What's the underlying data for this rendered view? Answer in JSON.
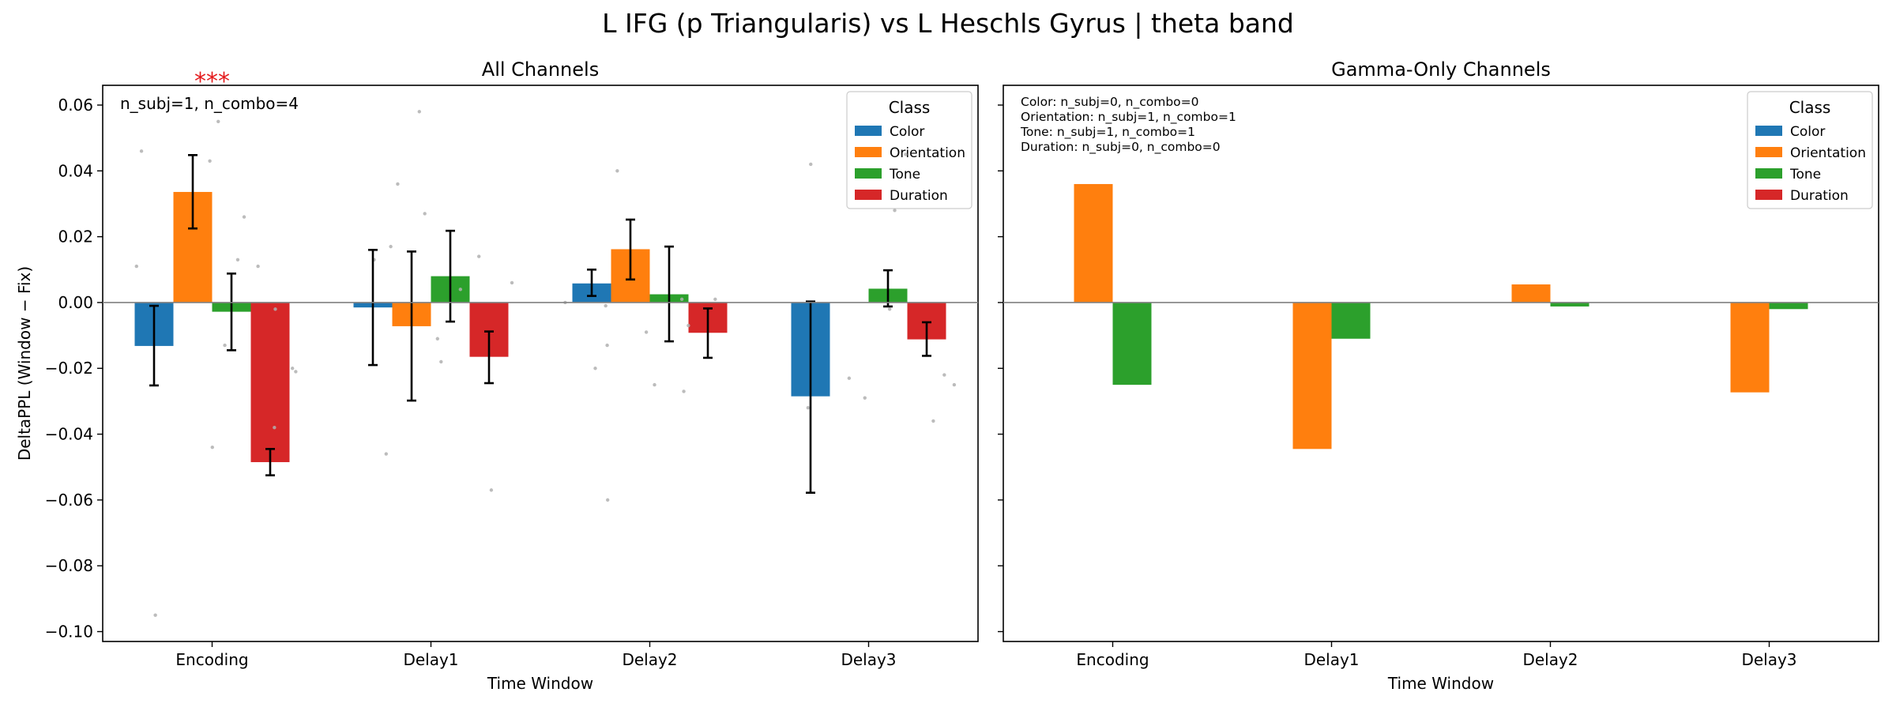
{
  "figure": {
    "title": "L IFG (p Triangularis) vs L Heschls Gyrus  |  theta band"
  },
  "colors": {
    "Color": "#1f77b4",
    "Orientation": "#ff7f0e",
    "Tone": "#2ca02c",
    "Duration": "#d62728",
    "significance": "#e41a1c",
    "points": "#b0b0b0"
  },
  "chart_data": [
    {
      "type": "bar",
      "title": "All Channels",
      "xlabel": "Time Window",
      "ylabel": "DeltaPPL (Window − Fix)",
      "categories": [
        "Encoding",
        "Delay1",
        "Delay2",
        "Delay3"
      ],
      "ylim": [
        -0.103,
        0.066
      ],
      "yticks": [
        -0.1,
        -0.08,
        -0.06,
        -0.04,
        -0.02,
        0.0,
        0.02,
        0.04,
        0.06
      ],
      "ytick_labels": [
        "−0.10",
        "−0.08",
        "−0.06",
        "−0.04",
        "−0.02",
        "0.00",
        "0.02",
        "0.04",
        "0.06"
      ],
      "legend": {
        "title": "Class",
        "position": "top-right"
      },
      "annotation": "n_subj=1, n_combo=4",
      "significance": [
        {
          "category": "Encoding",
          "label": "***"
        }
      ],
      "series": [
        {
          "name": "Color",
          "values": [
            -0.0132,
            -0.0015,
            0.0058,
            -0.0285
          ],
          "err_low": [
            -0.0252,
            -0.019,
            0.002,
            -0.0578
          ],
          "err_high": [
            -0.001,
            0.016,
            0.01,
            0.0003
          ],
          "points": [
            0.011,
            -0.046,
            -0.02,
            -0.032,
            0.046,
            0.017,
            -0.001,
            0.042,
            -0.095,
            0.013,
            0.0
          ]
        },
        {
          "name": "Orientation",
          "values": [
            0.0336,
            -0.0072,
            0.0162,
            null
          ],
          "err_low": [
            0.0225,
            -0.0298,
            0.007,
            null
          ],
          "err_high": [
            0.0448,
            0.0155,
            0.0252,
            null
          ],
          "points": [
            0.055,
            0.036,
            0.04,
            -0.029,
            -0.044,
            0.058,
            -0.013,
            -0.023,
            0.043,
            0.027,
            -0.06
          ]
        },
        {
          "name": "Tone",
          "values": [
            -0.0028,
            0.008,
            0.0025,
            0.0042
          ],
          "err_low": [
            -0.0145,
            -0.0058,
            -0.0118,
            -0.0012
          ],
          "err_high": [
            0.0088,
            0.0218,
            0.017,
            0.0098
          ],
          "points": [
            0.026,
            -0.018,
            -0.025,
            0.045,
            0.011,
            -0.011,
            -0.009,
            -0.002,
            -0.013,
            0.004,
            -0.027,
            0.028,
            0.013
          ]
        },
        {
          "name": "Duration",
          "values": [
            -0.0485,
            -0.0165,
            -0.0092,
            -0.0112
          ],
          "err_low": [
            -0.0525,
            -0.0245,
            -0.0168,
            -0.0162
          ],
          "err_high": [
            -0.0445,
            -0.0088,
            -0.0018,
            -0.006
          ],
          "points": [
            -0.038,
            -0.057,
            0.001,
            -0.036,
            -0.021,
            0.006,
            0.001,
            -0.022,
            -0.02,
            0.014,
            -0.007,
            -0.025,
            -0.002
          ]
        }
      ]
    },
    {
      "type": "bar",
      "title": "Gamma-Only Channels",
      "xlabel": "Time Window",
      "ylabel": "",
      "categories": [
        "Encoding",
        "Delay1",
        "Delay2",
        "Delay3"
      ],
      "ylim": [
        -0.103,
        0.066
      ],
      "legend": {
        "title": "Class",
        "position": "top-right"
      },
      "annotations": [
        "Color: n_subj=0, n_combo=0",
        "Orientation: n_subj=1, n_combo=1",
        "Tone: n_subj=1, n_combo=1",
        "Duration: n_subj=0, n_combo=0"
      ],
      "series": [
        {
          "name": "Color",
          "values": [
            null,
            null,
            null,
            null
          ]
        },
        {
          "name": "Orientation",
          "values": [
            0.036,
            -0.0445,
            0.0055,
            -0.0273
          ]
        },
        {
          "name": "Tone",
          "values": [
            -0.025,
            -0.011,
            -0.0012,
            -0.002
          ]
        },
        {
          "name": "Duration",
          "values": [
            null,
            null,
            null,
            null
          ]
        }
      ]
    }
  ]
}
